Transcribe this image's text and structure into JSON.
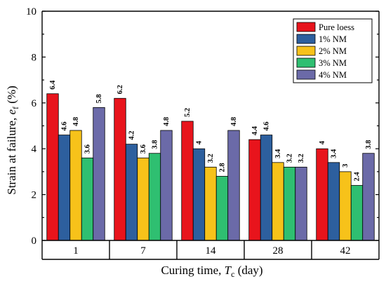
{
  "chart_data": {
    "type": "bar",
    "title": "",
    "xlabel_main": "Curing time, ",
    "xlabel_var": "T",
    "xlabel_sub": "c",
    "xlabel_unit": " (day)",
    "ylabel_main": "Strain at failure, ",
    "ylabel_var": "e",
    "ylabel_sub": "f",
    "ylabel_unit": " (%)",
    "categories": [
      "1",
      "7",
      "14",
      "28",
      "42"
    ],
    "ylim": [
      0,
      10
    ],
    "yticks": [
      "0",
      "2",
      "4",
      "6",
      "8",
      "10"
    ],
    "legend_position": "top-right",
    "grid": false,
    "series": [
      {
        "name": "Pure loess",
        "color": "#e8141c",
        "values": [
          6.4,
          6.2,
          5.2,
          4.4,
          4.0
        ],
        "labels": [
          "6.4",
          "6.2",
          "5.2",
          "4.4",
          "4"
        ]
      },
      {
        "name": "1% NM",
        "color": "#2d5f9e",
        "values": [
          4.6,
          4.2,
          4.0,
          4.6,
          3.4
        ],
        "labels": [
          "4.6",
          "4.2",
          "4",
          "4.6",
          "3.4"
        ]
      },
      {
        "name": "2% NM",
        "color": "#f7c21a",
        "values": [
          4.8,
          3.6,
          3.2,
          3.4,
          3.0
        ],
        "labels": [
          "4.8",
          "3.6",
          "3.2",
          "3.4",
          "3"
        ]
      },
      {
        "name": "3% NM",
        "color": "#2fbf71",
        "values": [
          3.6,
          3.8,
          2.8,
          3.2,
          2.4
        ],
        "labels": [
          "3.6",
          "3.8",
          "2.8",
          "3.2",
          "2.4"
        ]
      },
      {
        "name": "4% NM",
        "color": "#6b6aa8",
        "values": [
          5.8,
          4.8,
          4.8,
          3.2,
          3.8
        ],
        "labels": [
          "5.8",
          "4.8",
          "4.8",
          "3.2",
          "3.8"
        ]
      }
    ]
  }
}
